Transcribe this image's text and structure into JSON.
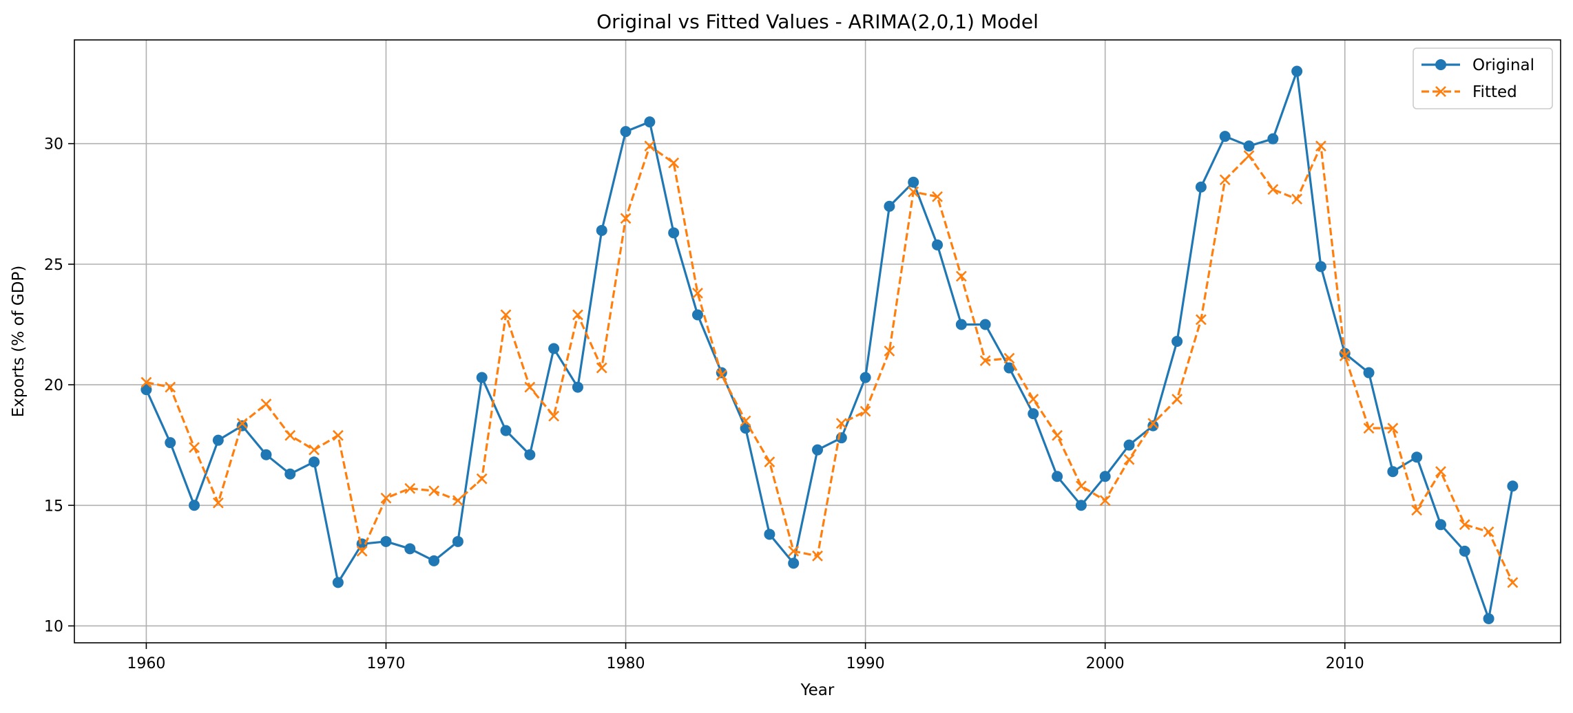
{
  "chart_data": {
    "type": "line",
    "title": "Original vs Fitted Values - ARIMA(2,0,1) Model",
    "xlabel": "Year",
    "ylabel": "Exports (% of GDP)",
    "xlim": [
      1957,
      2019
    ],
    "ylim": [
      9.3,
      34.3
    ],
    "xticks": [
      1960,
      1970,
      1980,
      1990,
      2000,
      2010
    ],
    "yticks": [
      10,
      15,
      20,
      25,
      30
    ],
    "grid": true,
    "legend_position": "top-right",
    "x": [
      1960,
      1961,
      1962,
      1963,
      1964,
      1965,
      1966,
      1967,
      1968,
      1969,
      1970,
      1971,
      1972,
      1973,
      1974,
      1975,
      1976,
      1977,
      1978,
      1979,
      1980,
      1981,
      1982,
      1983,
      1984,
      1985,
      1986,
      1987,
      1988,
      1989,
      1990,
      1991,
      1992,
      1993,
      1994,
      1995,
      1996,
      1997,
      1998,
      1999,
      2000,
      2001,
      2002,
      2003,
      2004,
      2005,
      2006,
      2007,
      2008,
      2009,
      2010,
      2011,
      2012,
      2013,
      2014,
      2015,
      2016,
      2017
    ],
    "series": [
      {
        "name": "Original",
        "color": "#1f77b4",
        "line_style": "solid",
        "marker": "circle",
        "values": [
          19.8,
          17.6,
          15.0,
          17.7,
          18.3,
          17.1,
          16.3,
          16.8,
          11.8,
          13.4,
          13.5,
          13.2,
          12.7,
          13.5,
          20.3,
          18.1,
          17.1,
          21.5,
          19.9,
          26.4,
          30.5,
          30.9,
          26.3,
          22.9,
          20.5,
          18.2,
          13.8,
          12.6,
          17.3,
          17.8,
          20.3,
          27.4,
          28.4,
          25.8,
          22.5,
          22.5,
          20.7,
          18.8,
          16.2,
          15.0,
          16.2,
          17.5,
          18.3,
          21.8,
          28.2,
          30.3,
          29.9,
          30.2,
          33.0,
          24.9,
          21.3,
          20.5,
          16.4,
          17.0,
          14.2,
          13.1,
          10.3,
          15.8
        ]
      },
      {
        "name": "Fitted",
        "color": "#ff7f0e",
        "line_style": "dashed",
        "marker": "x",
        "values": [
          20.1,
          19.9,
          17.4,
          15.1,
          18.4,
          19.2,
          17.9,
          17.3,
          17.9,
          13.1,
          15.3,
          15.7,
          15.6,
          15.2,
          16.1,
          22.9,
          19.9,
          18.7,
          22.9,
          20.7,
          26.9,
          29.9,
          29.2,
          23.8,
          20.4,
          18.5,
          16.8,
          13.1,
          12.9,
          18.4,
          18.9,
          21.4,
          28.0,
          27.8,
          24.5,
          21.0,
          21.1,
          19.4,
          17.9,
          15.8,
          15.2,
          16.9,
          18.4,
          19.4,
          22.7,
          28.5,
          29.5,
          28.1,
          27.7,
          29.9,
          21.2,
          18.2,
          18.2,
          14.8,
          16.4,
          14.2,
          13.9,
          11.8
        ]
      }
    ]
  }
}
